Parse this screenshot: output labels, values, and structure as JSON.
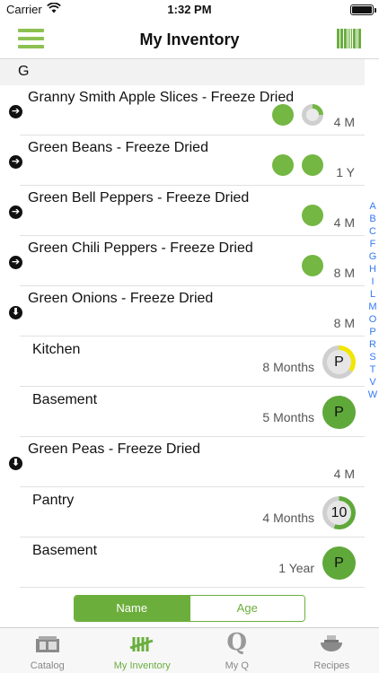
{
  "status_bar": {
    "carrier": "Carrier",
    "time": "1:32 PM"
  },
  "nav": {
    "title": "My Inventory"
  },
  "section": {
    "letter": "G"
  },
  "items": [
    {
      "name": "Granny Smith Apple Slices - Freeze Dried",
      "age": "4 M",
      "expanded": false,
      "dots": [
        "full",
        "partial"
      ]
    },
    {
      "name": "Green Beans - Freeze Dried",
      "age": "1 Y",
      "expanded": false,
      "dots": [
        "full",
        "full"
      ]
    },
    {
      "name": "Green Bell Peppers - Freeze Dried",
      "age": "4 M",
      "expanded": false,
      "dots": [
        "full"
      ]
    },
    {
      "name": "Green Chili Peppers - Freeze Dried",
      "age": "8 M",
      "expanded": false,
      "dots": [
        "full"
      ]
    },
    {
      "name": "Green Onions - Freeze Dried",
      "age": "8 M",
      "expanded": true
    },
    {
      "name": "Green Peas - Freeze Dried",
      "age": "4 M",
      "expanded": true
    }
  ],
  "locations": {
    "onions_kitchen": {
      "name": "Kitchen",
      "age": "8 Months",
      "badge": "P",
      "fill": 0.35,
      "fill_color": "#f2e600"
    },
    "onions_basement": {
      "name": "Basement",
      "age": "5 Months",
      "badge": "P",
      "fill": 1.0,
      "fill_color": "#5fa83a"
    },
    "peas_pantry": {
      "name": "Pantry",
      "age": "4 Months",
      "badge": "10",
      "fill": 0.55,
      "fill_color": "#5fa83a"
    },
    "peas_basement": {
      "name": "Basement",
      "age": "1 Year",
      "badge": "P",
      "fill": 1.0,
      "fill_color": "#5fa83a"
    }
  },
  "index_letters": [
    "A",
    "B",
    "C",
    "F",
    "G",
    "H",
    "I",
    "L",
    "M",
    "O",
    "P",
    "R",
    "S",
    "T",
    "V",
    "W"
  ],
  "segment": {
    "name_label": "Name",
    "age_label": "Age",
    "selected": "Name"
  },
  "tabs": [
    {
      "label": "Catalog",
      "icon": "catalog-icon"
    },
    {
      "label": "My Inventory",
      "icon": "tally-icon"
    },
    {
      "label": "My Q",
      "icon": "q-icon"
    },
    {
      "label": "Recipes",
      "icon": "bowl-icon"
    }
  ],
  "colors": {
    "accent": "#6aae3e",
    "full_dot": "#74b743",
    "index": "#3478f6"
  }
}
